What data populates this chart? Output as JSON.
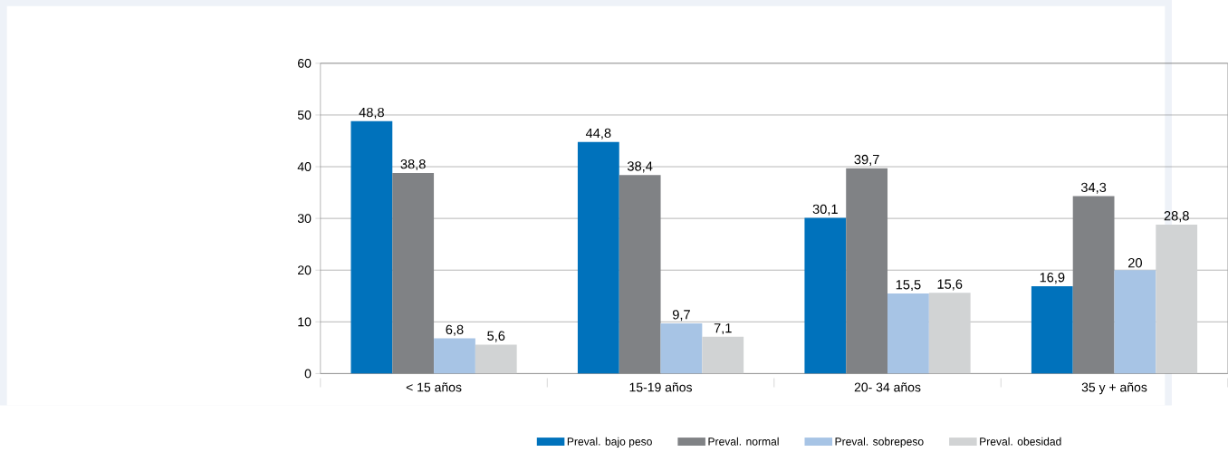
{
  "chart_data": {
    "type": "bar",
    "categories": [
      "< 15 años",
      "15-19 años",
      "20- 34 años",
      "35 y + años"
    ],
    "series": [
      {
        "name": "Preval. bajo peso",
        "color": "#0072bc",
        "values": [
          48.8,
          44.8,
          30.1,
          16.9
        ],
        "value_labels": [
          "48,8",
          "44,8",
          "30,1",
          "16,9"
        ]
      },
      {
        "name": "Preval. normal",
        "color": "#808285",
        "values": [
          38.8,
          38.4,
          39.7,
          34.3
        ],
        "value_labels": [
          "38,8",
          "38,4",
          "39,7",
          "34,3"
        ]
      },
      {
        "name": "Preval. sobrepeso",
        "color": "#a7c4e5",
        "values": [
          6.8,
          9.7,
          15.5,
          20
        ],
        "value_labels": [
          "6,8",
          "9,7",
          "15,5",
          "20"
        ]
      },
      {
        "name": "Preval. obesidad",
        "color": "#d1d3d4",
        "values": [
          5.6,
          7.1,
          15.6,
          28.8
        ],
        "value_labels": [
          "5,6",
          "7,1",
          "15,6",
          "28,8"
        ]
      }
    ],
    "ylim": [
      0,
      60
    ],
    "yticks": [
      0,
      10,
      20,
      30,
      40,
      50,
      60
    ],
    "grid": "y",
    "legend": "bottom"
  }
}
